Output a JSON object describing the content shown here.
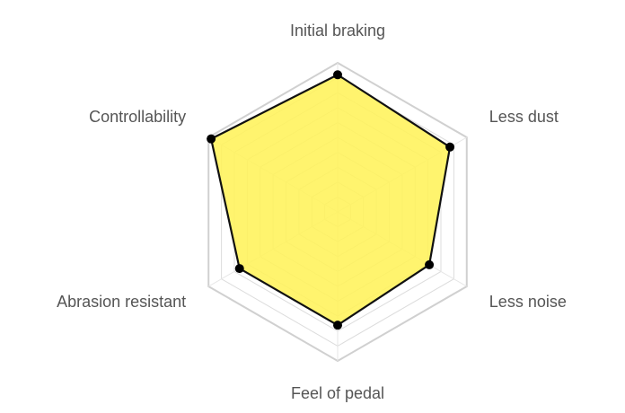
{
  "chart_data": {
    "type": "radar",
    "title": "",
    "axes": [
      "Initial braking",
      "Less dust",
      "Less noise",
      "Feel of pedal",
      "Abrasion resistant",
      "Controllability"
    ],
    "series": [
      {
        "name": "",
        "values": [
          9.2,
          8.7,
          7.1,
          7.6,
          7.6,
          9.8
        ],
        "fill": "#fff35a",
        "stroke": "#111111",
        "point_color": "#000000"
      }
    ],
    "range": [
      0,
      10
    ],
    "grid_levels": 10,
    "grid": true,
    "legend": "none"
  }
}
